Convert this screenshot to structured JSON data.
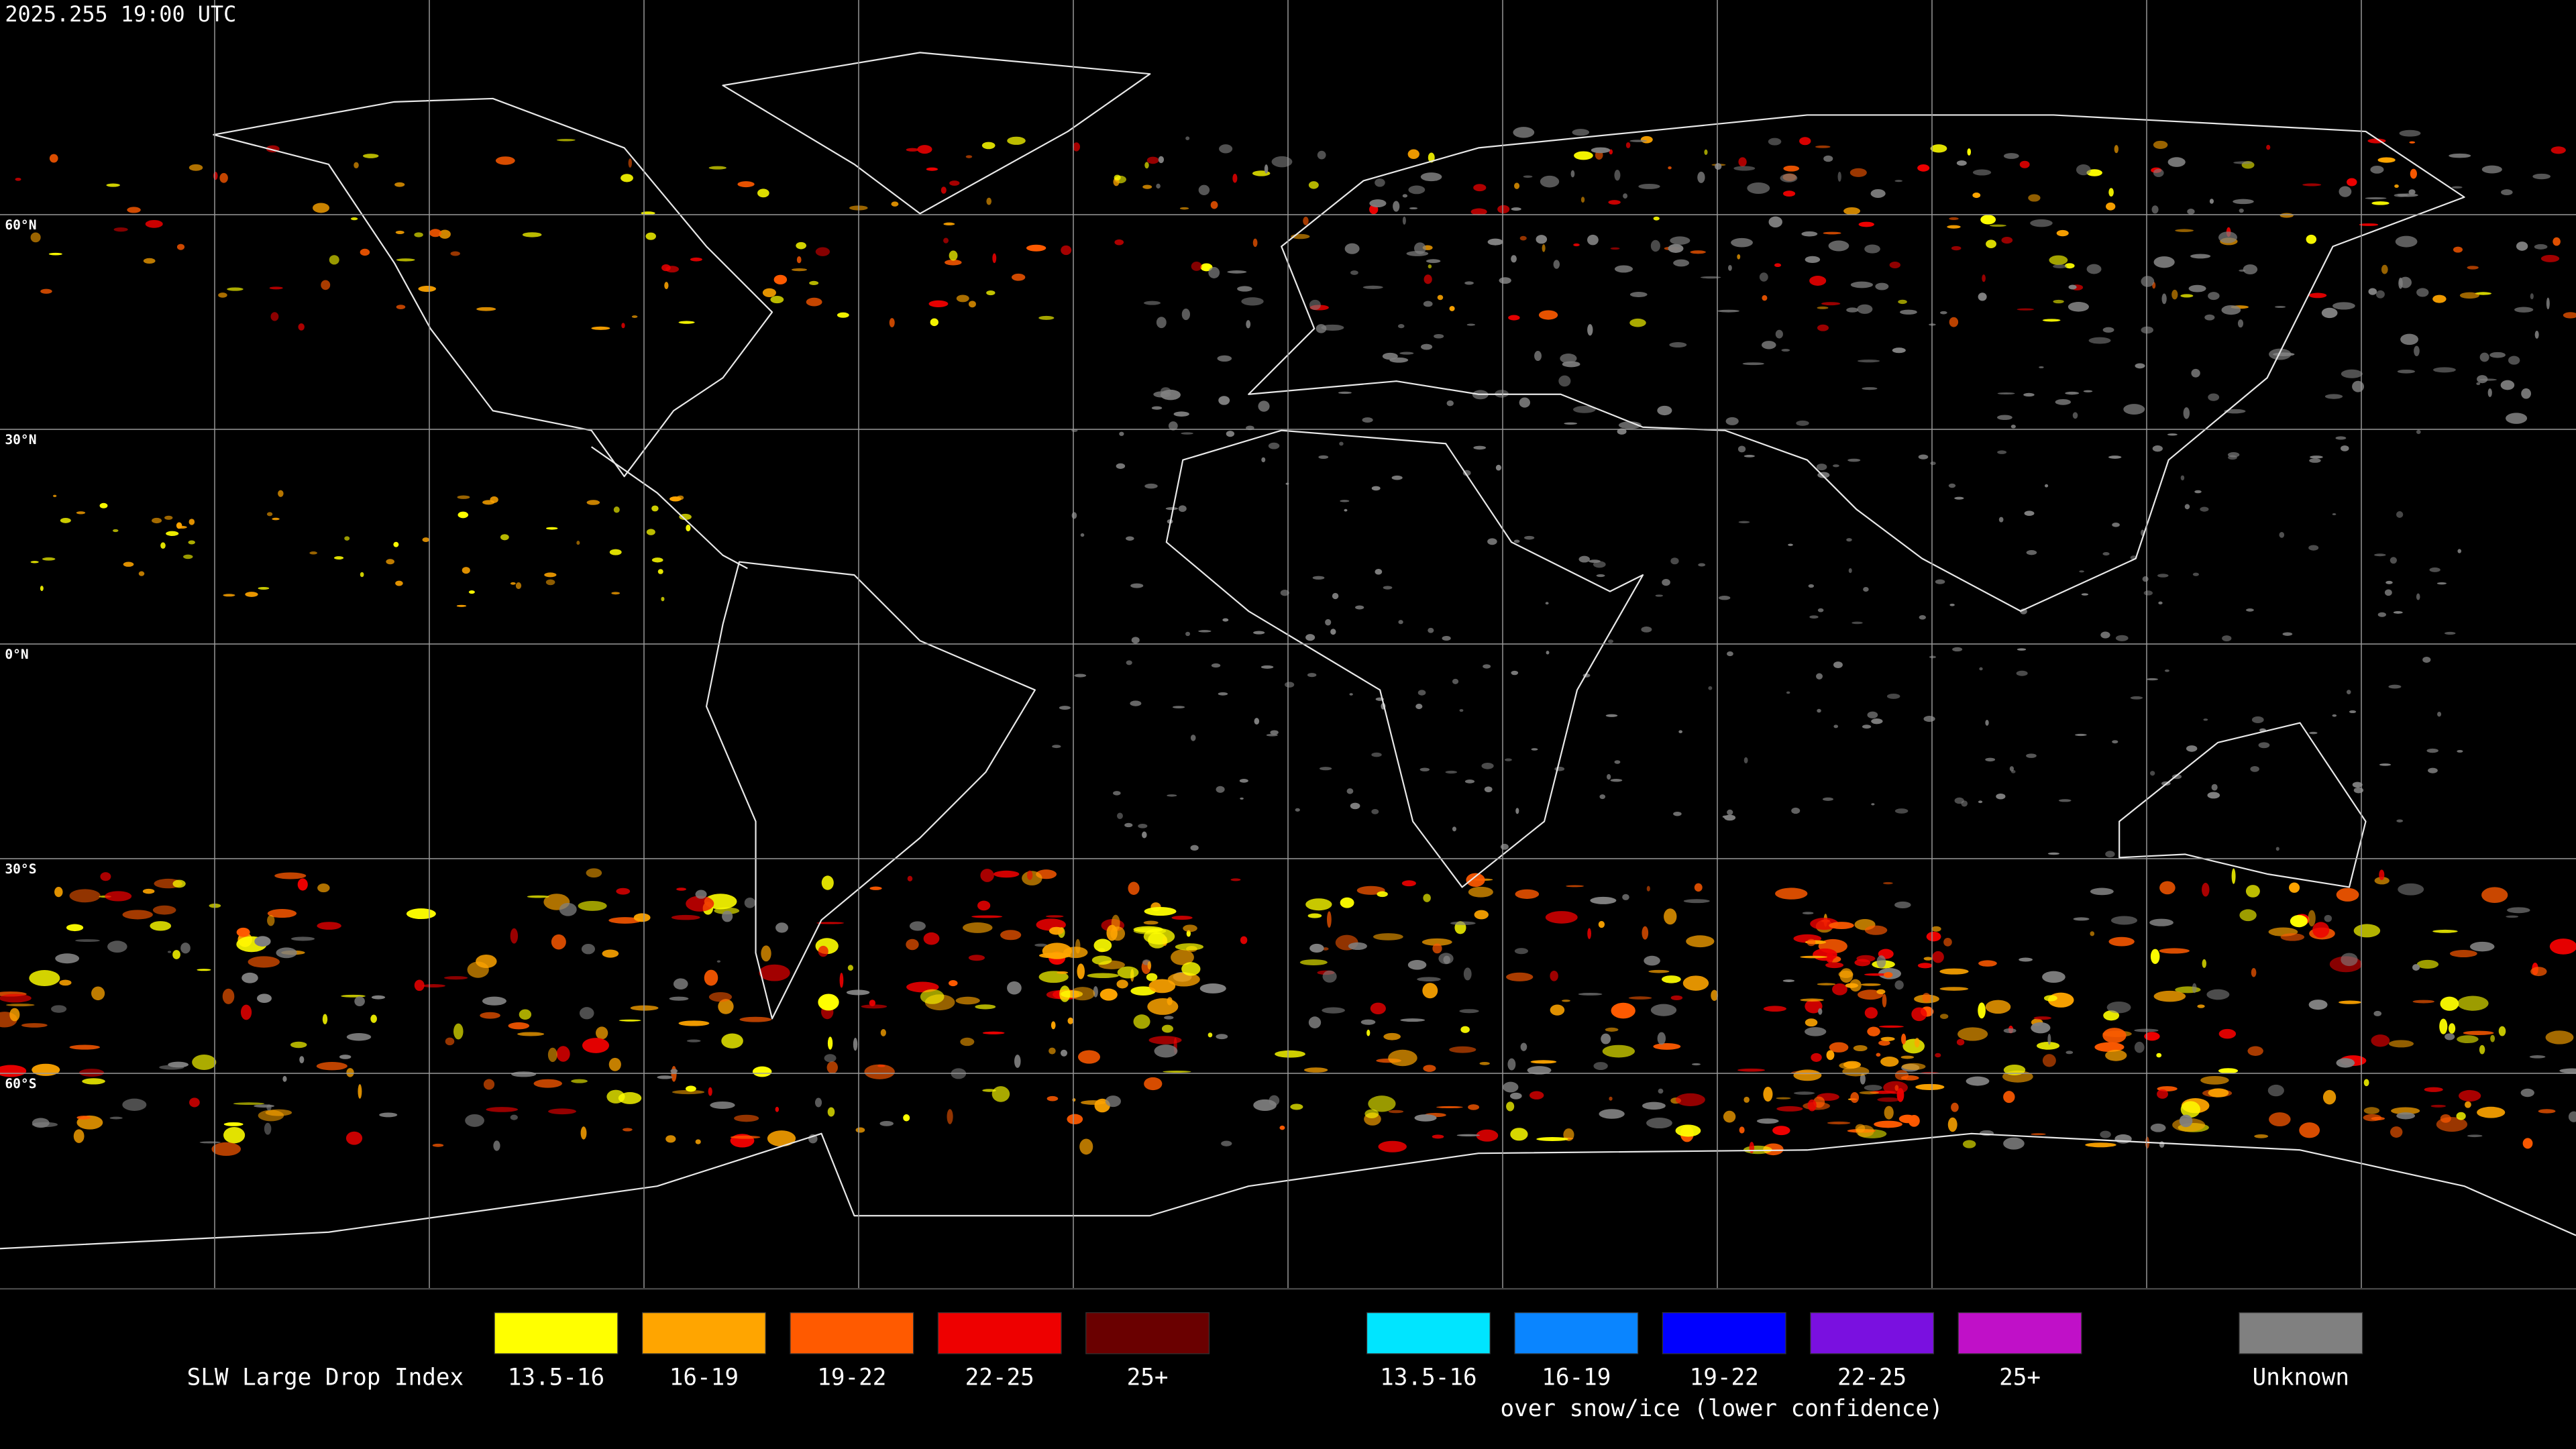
{
  "timestamp": "2025.255 19:00 UTC",
  "map": {
    "lat_labels": [
      "60°N",
      "30°N",
      "0°N",
      "30°S",
      "60°S"
    ]
  },
  "legend": {
    "title": "SLW Large Drop Index",
    "land": [
      {
        "label": "13.5-16",
        "color": "#ffff00"
      },
      {
        "label": "16-19",
        "color": "#ffa500"
      },
      {
        "label": "19-22",
        "color": "#ff5a00"
      },
      {
        "label": "22-25",
        "color": "#ee0000"
      },
      {
        "label": "25+",
        "color": "#6a0000"
      }
    ],
    "snow_ice": {
      "items": [
        {
          "label": "13.5-16",
          "color": "#00e5ff"
        },
        {
          "label": "16-19",
          "color": "#0a85ff"
        },
        {
          "label": "19-22",
          "color": "#0000ff"
        },
        {
          "label": "22-25",
          "color": "#7a10e0"
        },
        {
          "label": "25+",
          "color": "#c010c8"
        }
      ],
      "caption": "over snow/ice (lower confidence)"
    },
    "unknown": {
      "label": "Unknown",
      "color": "#808080"
    }
  }
}
